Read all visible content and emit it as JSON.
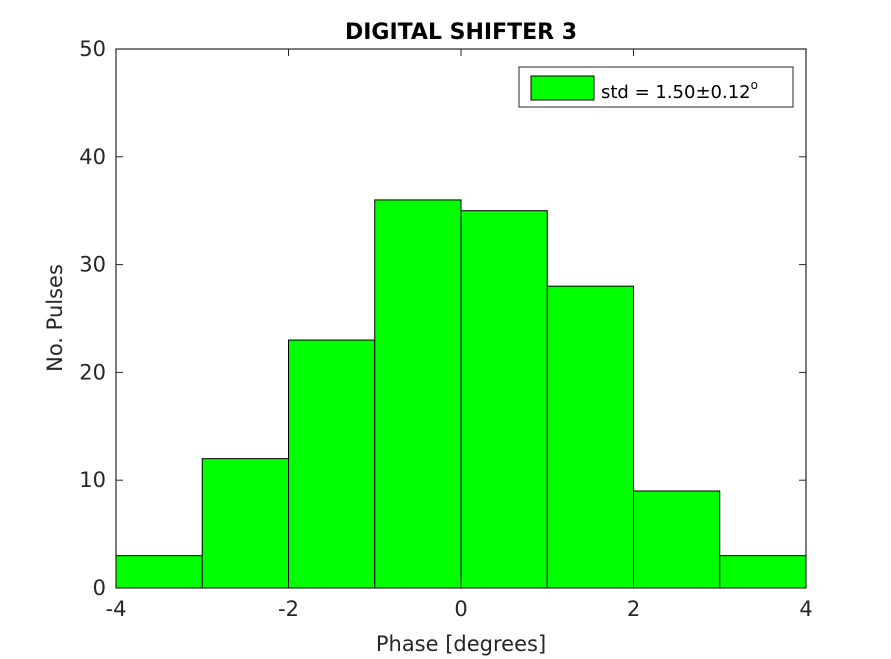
{
  "chart_data": {
    "type": "bar",
    "title": "DIGITAL SHIFTER 3",
    "xlabel": "Phase [degrees]",
    "ylabel": "No. Pulses",
    "bin_edges": [
      -4,
      -3,
      -2,
      -1,
      0,
      1,
      2,
      3,
      4
    ],
    "values": [
      3,
      12,
      23,
      36,
      35,
      28,
      9,
      3
    ],
    "xlim": [
      -4,
      4
    ],
    "ylim": [
      0,
      50
    ],
    "xticks": [
      -4,
      -2,
      0,
      2,
      4
    ],
    "yticks": [
      0,
      10,
      20,
      30,
      40,
      50
    ],
    "xtick_labels": [
      "-4",
      "-2",
      "0",
      "2",
      "4"
    ],
    "ytick_labels": [
      "0",
      "10",
      "20",
      "30",
      "40",
      "50"
    ],
    "series": [
      {
        "name": "std = 1.50±0.12",
        "name_superscript": "o",
        "color": "#00ff00"
      }
    ],
    "legend_position": "top-right",
    "grid": false,
    "edge_color": "#000000"
  }
}
